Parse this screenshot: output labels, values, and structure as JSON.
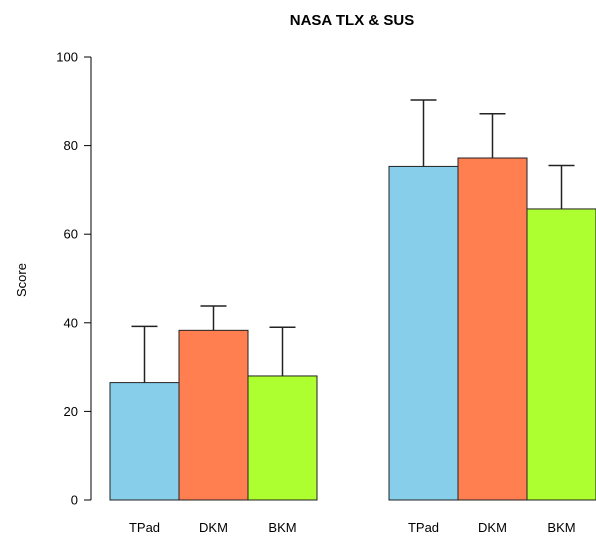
{
  "chart_data": {
    "type": "bar",
    "title": "NASA TLX & SUS",
    "xlabel": "",
    "ylabel": "Score",
    "ylim": [
      0,
      100
    ],
    "yticks": [
      "0",
      "20",
      "40",
      "60",
      "80",
      "100"
    ],
    "grid": false,
    "groups": [
      {
        "bars": [
          {
            "category": "TPad",
            "value": 26.5,
            "error_upper": 39.2,
            "color": "#87CEEB"
          },
          {
            "category": "DKM",
            "value": 38.3,
            "error_upper": 43.8,
            "color": "#FF7F50"
          },
          {
            "category": "BKM",
            "value": 28.0,
            "error_upper": 39.0,
            "color": "#ADFF2F"
          }
        ]
      },
      {
        "bars": [
          {
            "category": "TPad",
            "value": 75.3,
            "error_upper": 90.3,
            "color": "#87CEEB"
          },
          {
            "category": "DKM",
            "value": 77.2,
            "error_upper": 87.2,
            "color": "#FF7F50"
          },
          {
            "category": "BKM",
            "value": 65.7,
            "error_upper": 75.5,
            "color": "#ADFF2F"
          }
        ]
      }
    ]
  }
}
